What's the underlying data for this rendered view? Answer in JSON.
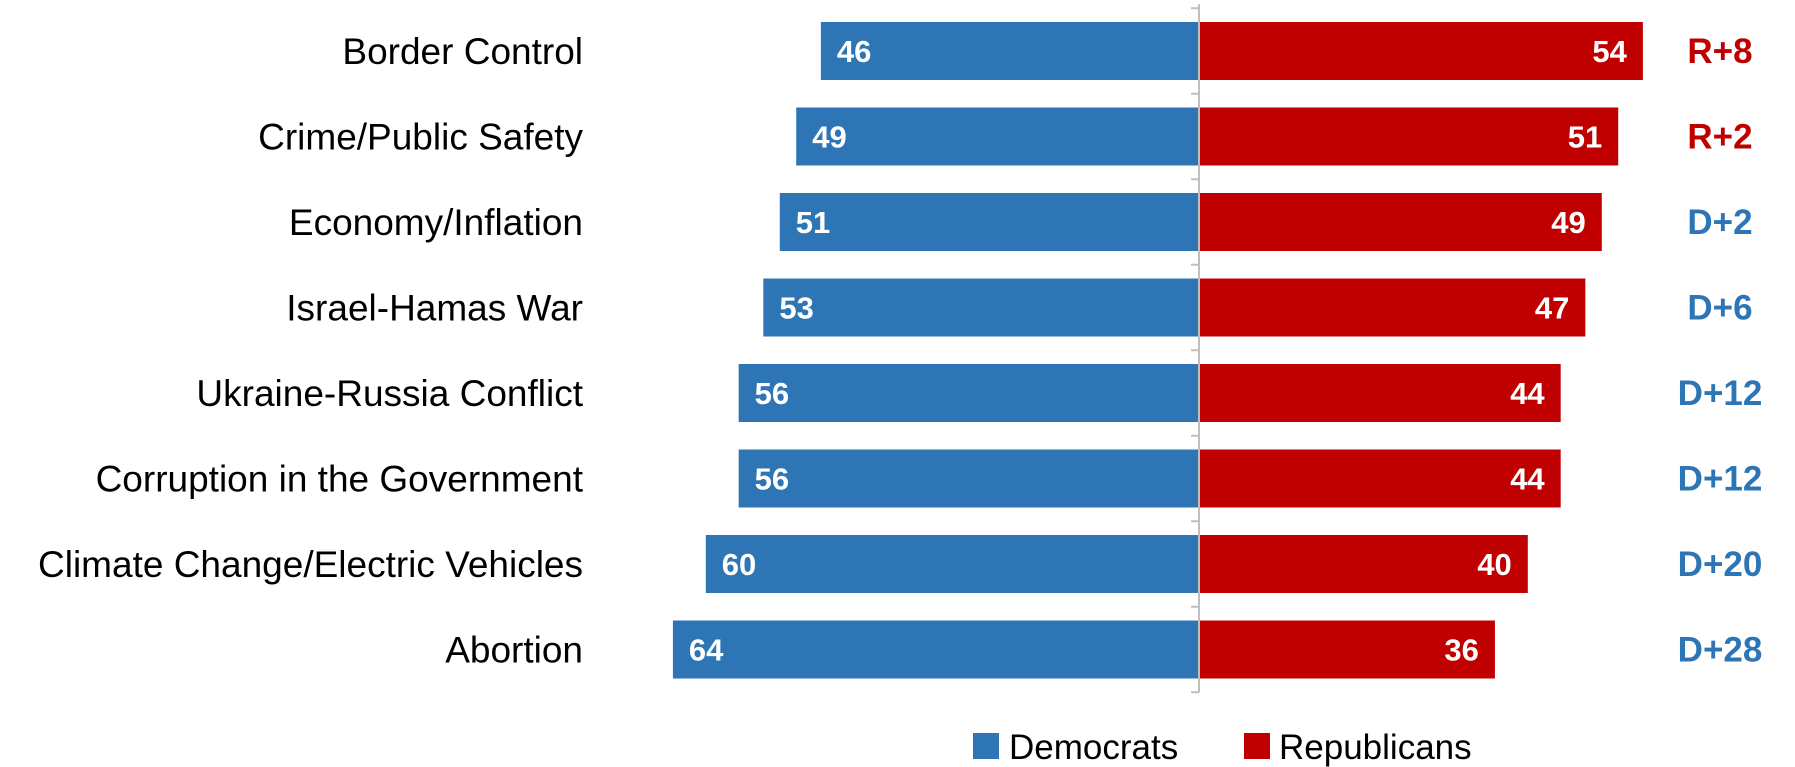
{
  "colors": {
    "democrats": "#2e75b6",
    "republicans": "#c00000",
    "axis": "#bfbfbf"
  },
  "chart_data": {
    "type": "bar",
    "orientation": "horizontal-diverging",
    "categories": [
      "Border Control",
      "Crime/Public Safety",
      "Economy/Inflation",
      "Israel-Hamas War",
      "Ukraine-Russia Conflict",
      "Corruption in the Government",
      "Climate Change/Electric Vehicles",
      "Abortion"
    ],
    "series": [
      {
        "name": "Democrats",
        "values": [
          46,
          49,
          51,
          53,
          56,
          56,
          60,
          64
        ]
      },
      {
        "name": "Republicans",
        "values": [
          54,
          51,
          49,
          47,
          44,
          44,
          40,
          36
        ]
      }
    ],
    "margins": [
      "R+8",
      "R+2",
      "D+2",
      "D+6",
      "D+12",
      "D+12",
      "D+20",
      "D+28"
    ],
    "xlim": [
      -70,
      70
    ],
    "legend_position": "bottom-center",
    "grid": false
  }
}
